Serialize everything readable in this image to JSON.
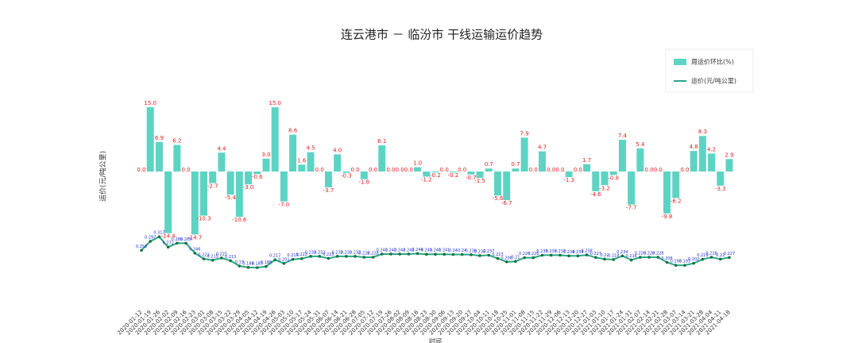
{
  "chart_data": {
    "type": "bar_line",
    "title": "连云港市 － 临汾市 干线运输运价趋势",
    "y_label": "运价(元/吨公里)",
    "x_label": "时间",
    "x": [
      "2020-01-12",
      "2020-01-19",
      "2020-01-26",
      "2020-02-02",
      "2020-02-09",
      "2020-02-16",
      "2020-02-23",
      "2020-03-01",
      "2020-03-08",
      "2020-03-15",
      "2020-03-22",
      "2020-03-29",
      "2020-04-05",
      "2020-04-12",
      "2020-04-19",
      "2020-04-26",
      "2020-05-03",
      "2020-05-10",
      "2020-05-17",
      "2020-05-24",
      "2020-05-31",
      "2020-06-07",
      "2020-06-14",
      "2020-06-21",
      "2020-06-28",
      "2020-07-05",
      "2020-07-12",
      "2020-07-19",
      "2020-07-26",
      "2020-08-02",
      "2020-08-09",
      "2020-08-16",
      "2020-08-23",
      "2020-08-30",
      "2020-09-06",
      "2020-09-13",
      "2020-09-20",
      "2020-09-27",
      "2020-10-04",
      "2020-10-11",
      "2020-10-18",
      "2020-10-25",
      "2020-11-01",
      "2020-11-08",
      "2020-11-15",
      "2020-11-22",
      "2020-11-29",
      "2020-12-06",
      "2020-12-13",
      "2020-12-20",
      "2020-12-27",
      "2021-01-03",
      "2021-01-10",
      "2021-01-17",
      "2021-01-24",
      "2021-01-31",
      "2021-02-07",
      "2021-02-14",
      "2021-02-21",
      "2021-02-28",
      "2021-03-07",
      "2021-03-14",
      "2021-03-21",
      "2021-03-28",
      "2021-04-04",
      "2021-04-11",
      "2021-04-18"
    ],
    "ylim": [
      -30.4,
      21.5
    ],
    "y2lim": [
      0.035,
      1.0
    ],
    "legend": "upper right",
    "series": [
      {
        "name": "周运价环比(%)",
        "type": "bar",
        "color": "#5dd3c3",
        "label_color": "#e02020",
        "values": [
          0,
          15,
          6.9,
          -14.4,
          6.2,
          0,
          -14.7,
          -10.3,
          -2.7,
          4.4,
          -5.4,
          -10.6,
          -3,
          -0.6,
          3,
          15,
          -7,
          8.6,
          1.6,
          4.5,
          0,
          -3.7,
          4,
          -0.3,
          0,
          -1.8,
          0,
          6.1,
          0,
          0,
          0,
          1,
          -1.2,
          -0.2,
          0,
          -0.2,
          0,
          -0.7,
          -1.5,
          0.7,
          -5.6,
          -6.7,
          0.7,
          7.9,
          0,
          4.7,
          0,
          0,
          -1.3,
          0,
          1.7,
          -4.6,
          -3.2,
          -0.8,
          7.4,
          -7.7,
          5.4,
          0,
          0,
          -9.8,
          -6.2,
          0,
          4.8,
          8.3,
          4.2,
          -3.3,
          2.9
        ],
        "value_labels": [
          "0.0",
          "15.0",
          "6.9",
          "-14.4",
          "6.2",
          "0.0",
          "-14.7",
          "-10.3",
          "-2.7",
          "4.4",
          "-5.4",
          "-10.6",
          "-3.0",
          "-0.6",
          "3.0",
          "15.0",
          "-7.0",
          "8.6",
          "1.6",
          "4.5",
          "0.0",
          "-3.7",
          "4.0",
          "-0.3",
          "0.0",
          "-1.8",
          "0.0",
          "6.1",
          "0.0",
          "0.0",
          "0.0",
          "1.0",
          "-1.2",
          "-0.2",
          "0.0",
          "-0.2",
          "0.0",
          "-0.7",
          "-1.5",
          "0.7",
          "-5.6",
          "-6.7",
          "0.7",
          "7.9",
          "0.0",
          "4.7",
          "0.0",
          "0.0",
          "-1.3",
          "0.0",
          "1.7",
          "-4.6",
          "-3.2",
          "-0.8",
          "7.4",
          "-7.7",
          "5.4",
          "0.0",
          "0.0",
          "-9.8",
          "-6.2",
          "0.0",
          "4.8",
          "8.3",
          "4.2",
          "-3.3",
          "2.9"
        ]
      },
      {
        "name": "运价(元/吨公里)",
        "type": "line",
        "axis": "y2",
        "color": "#2aa58c",
        "marker_color": "#17733a",
        "label_color": "#2030d0",
        "values": [
          0.258,
          0.297,
          0.317,
          0.272,
          0.289,
          0.289,
          0.246,
          0.221,
          0.215,
          0.225,
          0.213,
          0.19,
          0.184,
          0.183,
          0.188,
          0.217,
          0.201,
          0.219,
          0.222,
          0.232,
          0.232,
          0.223,
          0.232,
          0.232,
          0.232,
          0.228,
          0.228,
          0.242,
          0.242,
          0.242,
          0.242,
          0.244,
          0.241,
          0.241,
          0.241,
          0.24,
          0.24,
          0.239,
          0.235,
          0.237,
          0.223,
          0.208,
          0.21,
          0.226,
          0.226,
          0.237,
          0.237,
          0.237,
          0.234,
          0.234,
          0.238,
          0.227,
          0.22,
          0.218,
          0.234,
          0.216,
          0.228,
          0.228,
          0.228,
          0.206,
          0.193,
          0.193,
          0.202,
          0.219,
          0.228,
          0.22,
          0.227
        ]
      }
    ]
  }
}
